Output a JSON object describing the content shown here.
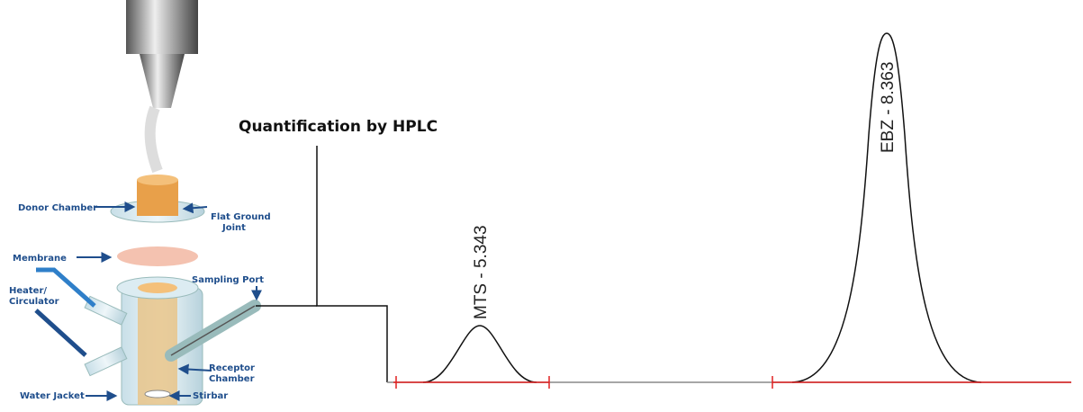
{
  "title": "Quantification by HPLC",
  "cell_labels": [
    {
      "lines": [
        "Donor Chamber"
      ]
    },
    {
      "lines": [
        "Flat Ground",
        "Joint"
      ]
    },
    {
      "lines": [
        "Membrane"
      ]
    },
    {
      "lines": [
        "Heater/",
        "Circulator"
      ]
    },
    {
      "lines": [
        "Sampling Port"
      ]
    },
    {
      "lines": [
        "Receptor",
        "Chamber"
      ]
    },
    {
      "lines": [
        "Water Jacket"
      ]
    },
    {
      "lines": [
        "Stirbar"
      ]
    }
  ],
  "peaks": [
    {
      "label": "MTS - 5.343"
    },
    {
      "label": "EBZ - 8.363"
    }
  ]
}
